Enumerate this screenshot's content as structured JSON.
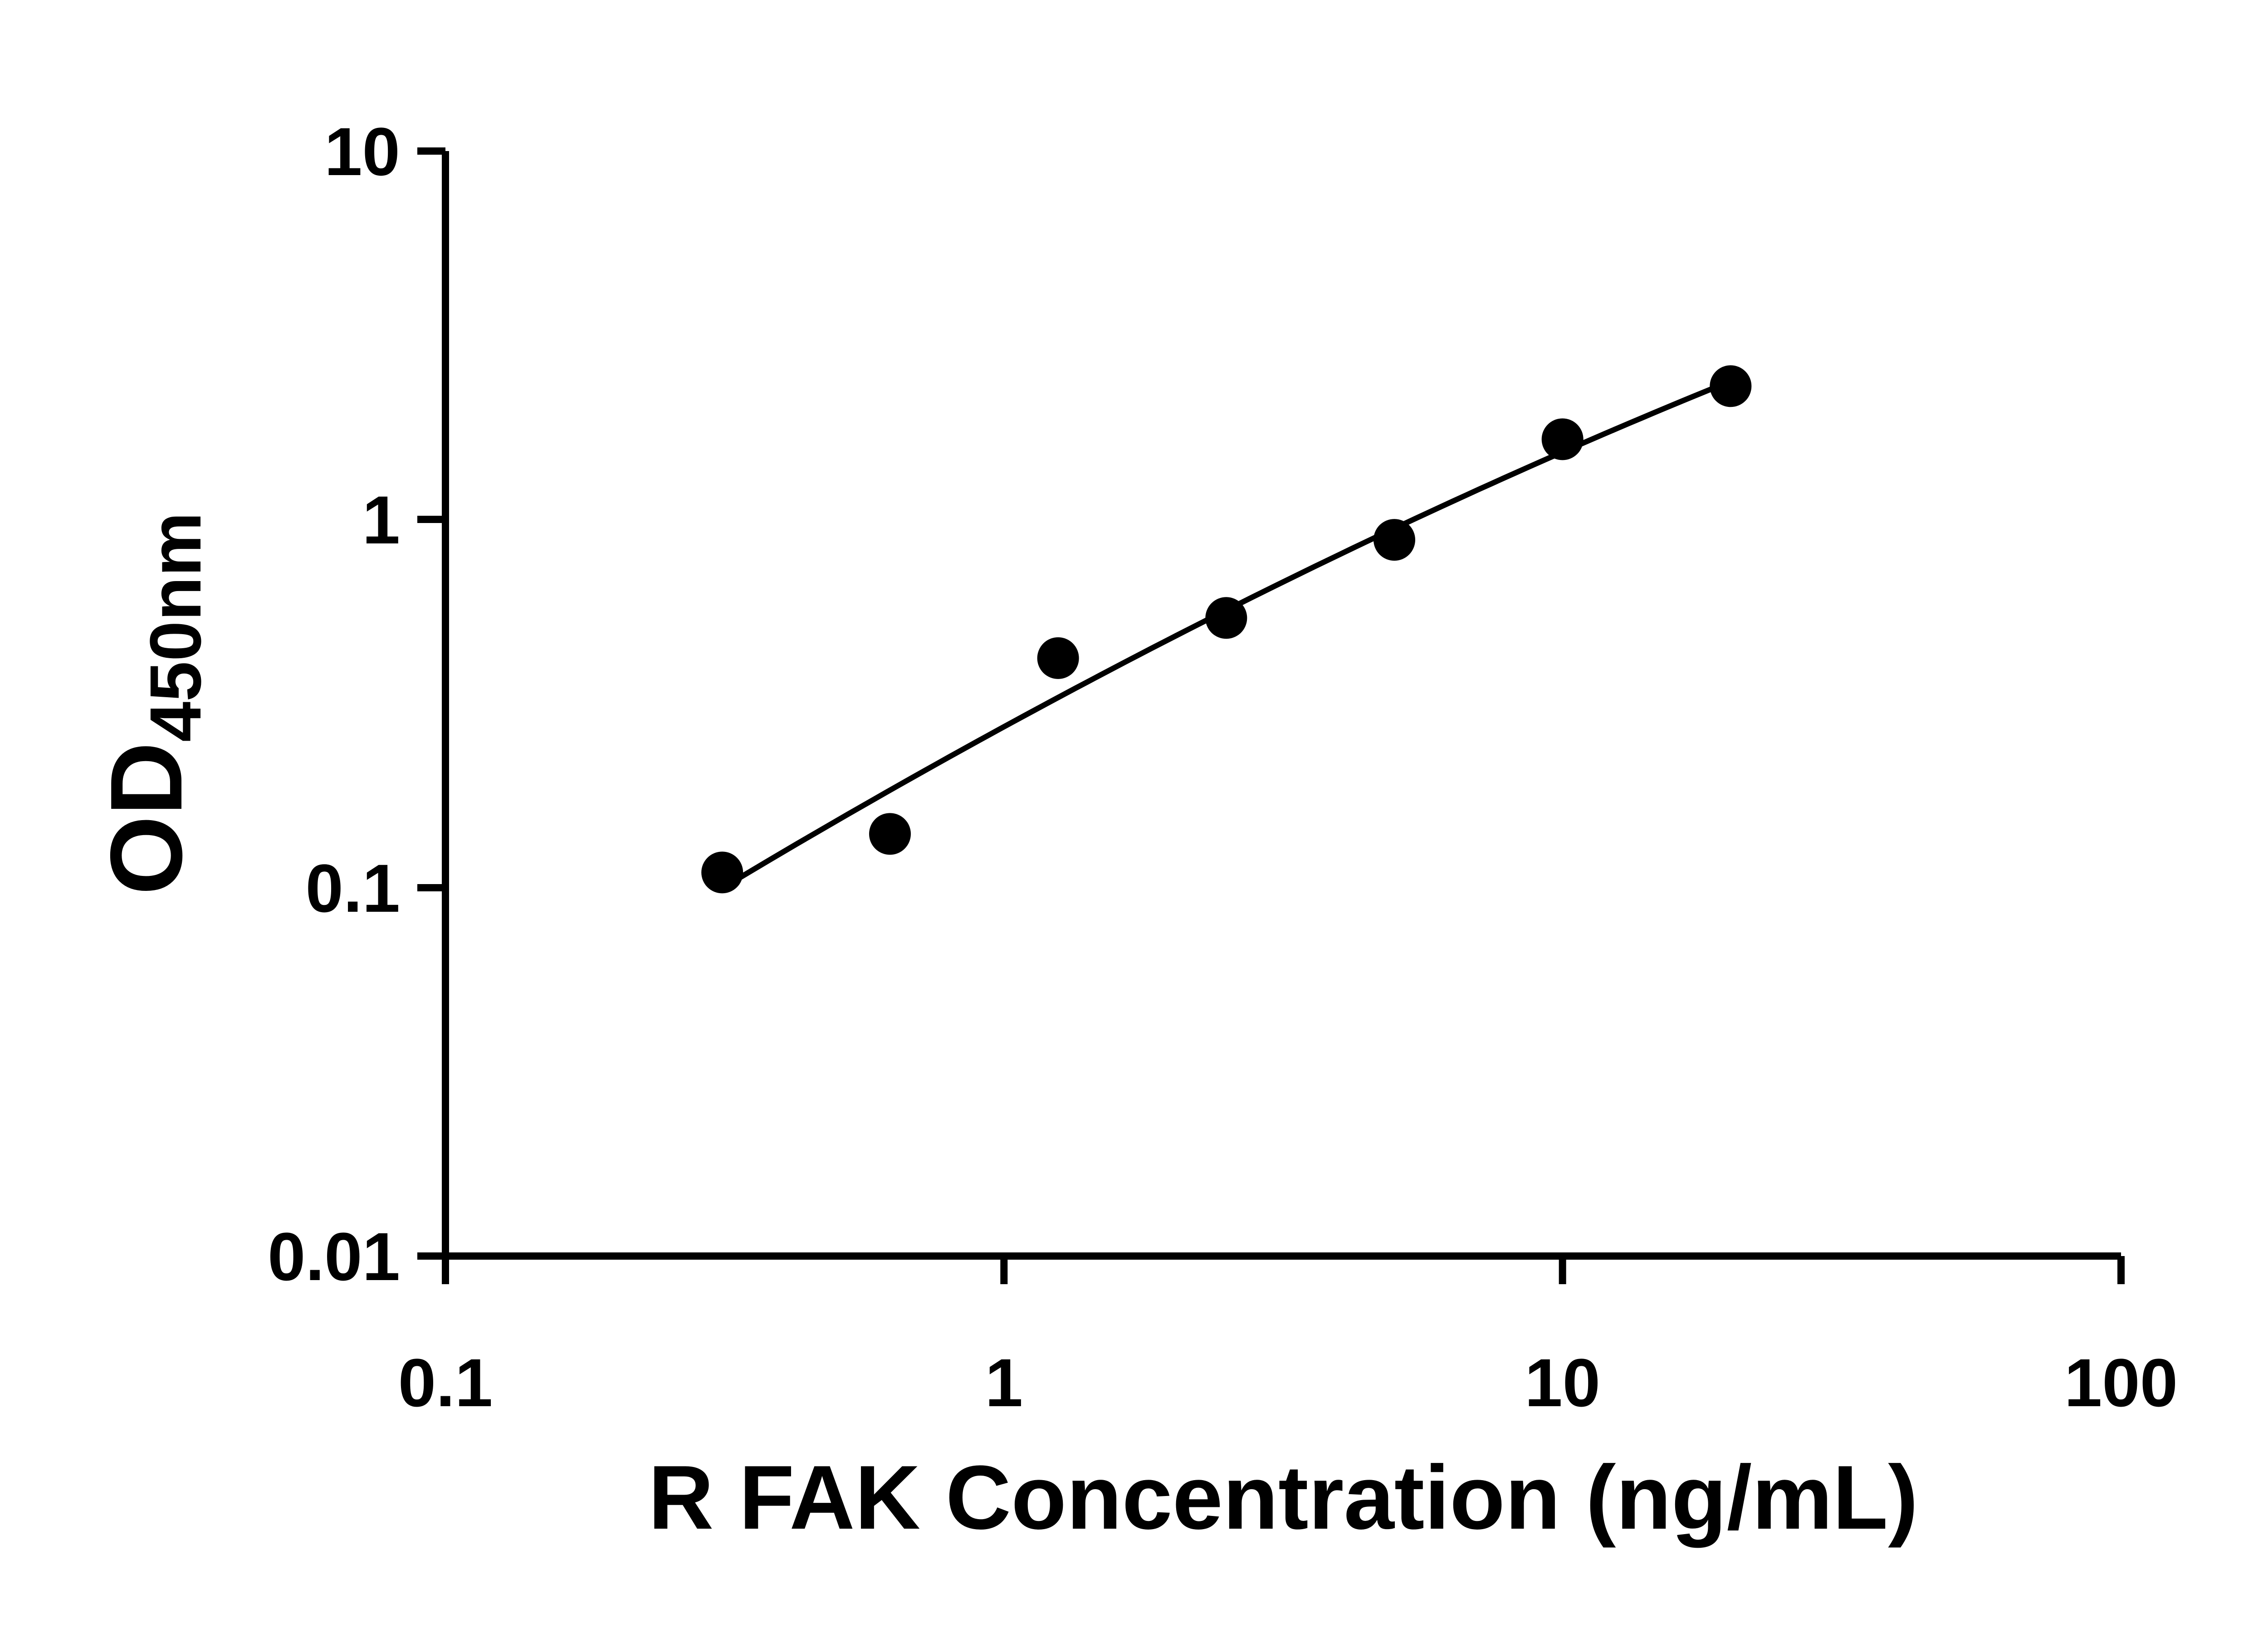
{
  "figure": {
    "background": "#ffffff",
    "axis_color": "#000000",
    "marker_color": "#000000",
    "curve_color": "#000000"
  },
  "chart_data": {
    "type": "scatter",
    "title": "",
    "xlabel": "R FAK Concentration (ng/mL)",
    "ylabel": "OD",
    "ylabel_subscript": "450nm",
    "x_scale": "log10",
    "y_scale": "log10",
    "xlim": [
      0.1,
      100
    ],
    "ylim": [
      0.01,
      10
    ],
    "x_ticks": [
      0.1,
      1,
      10,
      100
    ],
    "x_tick_labels": [
      "0.1",
      "1",
      "10",
      "100"
    ],
    "y_ticks": [
      0.01,
      0.1,
      1,
      10
    ],
    "y_tick_labels": [
      "0.01",
      "0.1",
      "1",
      "10"
    ],
    "grid": false,
    "legend_position": "none",
    "series": [
      {
        "marker": "filled-circle",
        "line": "smooth-fit-curve",
        "points": [
          {
            "x": 0.313,
            "y": 0.11
          },
          {
            "x": 0.625,
            "y": 0.14
          },
          {
            "x": 1.25,
            "y": 0.42
          },
          {
            "x": 2.5,
            "y": 0.54
          },
          {
            "x": 5,
            "y": 0.88
          },
          {
            "x": 10,
            "y": 1.65
          },
          {
            "x": 20,
            "y": 2.3
          }
        ]
      }
    ]
  }
}
